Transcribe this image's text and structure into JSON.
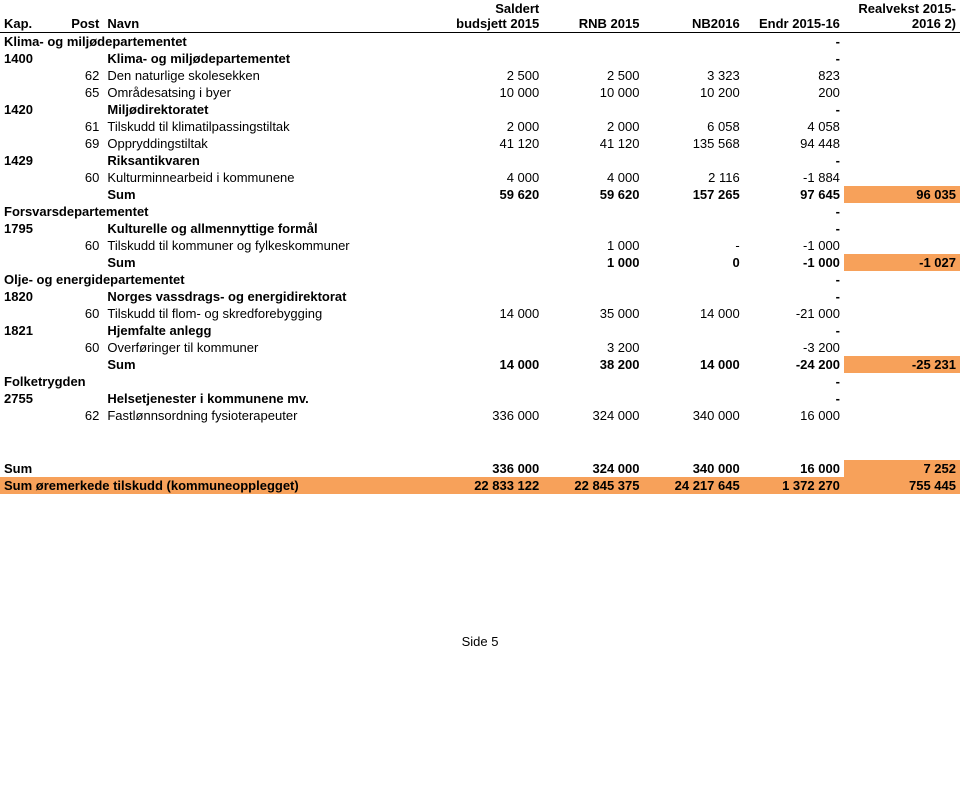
{
  "header": {
    "kap": "Kap.",
    "post": "Post",
    "navn": "Navn",
    "col1_a": "Saldert",
    "col1_b": "budsjett 2015",
    "col2": "RNB 2015",
    "col3": "NB2016",
    "col4": "Endr 2015-16",
    "col5_a": "Realvekst 2015-",
    "col5_b": "2016 2)"
  },
  "sections": [
    {
      "group": "Klima- og miljødepartementet",
      "endr": "-",
      "rows": [
        {
          "kap": "1400",
          "navn": "Klima- og miljødepartementet",
          "c4": "-",
          "bold": true
        },
        {
          "post": "62",
          "navn": "Den naturlige skolesekken",
          "c1": "2 500",
          "c2": "2 500",
          "c3": "3 323",
          "c4": "823"
        },
        {
          "post": "65",
          "navn": "Områdesatsing i byer",
          "c1": "10 000",
          "c2": "10 000",
          "c3": "10 200",
          "c4": "200"
        },
        {
          "kap": "1420",
          "navn": "Miljødirektoratet",
          "c4": "-",
          "bold": true
        },
        {
          "post": "61",
          "navn": "Tilskudd til klimatilpassingstiltak",
          "c1": "2 000",
          "c2": "2 000",
          "c3": "6 058",
          "c4": "4 058"
        },
        {
          "post": "69",
          "navn": "Oppryddingstiltak",
          "c1": "41 120",
          "c2": "41 120",
          "c3": "135 568",
          "c4": "94 448"
        },
        {
          "kap": "1429",
          "navn": "Riksantikvaren",
          "c4": "-",
          "bold": true
        },
        {
          "post": "60",
          "navn": "Kulturminnearbeid i kommunene",
          "c1": "4 000",
          "c2": "4 000",
          "c3": "2 116",
          "c4": "-1 884"
        }
      ],
      "sum": {
        "label": "Sum",
        "c1": "59 620",
        "c2": "59 620",
        "c3": "157 265",
        "c4": "97 645",
        "c5": "96 035"
      }
    },
    {
      "group": "Forsvarsdepartementet",
      "endr": "-",
      "rows": [
        {
          "kap": "1795",
          "navn": "Kulturelle og allmennyttige formål",
          "c4": "-",
          "bold": true
        },
        {
          "post": "60",
          "navn": "Tilskudd til kommuner og fylkeskommuner",
          "c2": "1 000",
          "c3": "-",
          "c4": "-1 000"
        }
      ],
      "sum": {
        "label": "Sum",
        "c2": "1 000",
        "c3": "0",
        "c4": "-1 000",
        "c5": "-1 027"
      }
    },
    {
      "group": "Olje- og energidepartementet",
      "endr": "-",
      "rows": [
        {
          "kap": "1820",
          "navn": "Norges vassdrags- og energidirektorat",
          "c4": "-",
          "bold": true
        },
        {
          "post": "60",
          "navn": "Tilskudd til flom- og skredforebygging",
          "c1": "14 000",
          "c2": "35 000",
          "c3": "14 000",
          "c4": "-21 000"
        },
        {
          "kap": "1821",
          "navn": "Hjemfalte anlegg",
          "c4": "-",
          "bold": true
        },
        {
          "post": "60",
          "navn": "Overføringer til kommuner",
          "c2": "3 200",
          "c4": "-3 200"
        }
      ],
      "sum": {
        "label": "Sum",
        "c1": "14 000",
        "c2": "38 200",
        "c3": "14 000",
        "c4": "-24 200",
        "c5": "-25 231"
      }
    },
    {
      "group": "Folketrygden",
      "endr": "-",
      "rows": [
        {
          "kap": "2755",
          "navn": "Helsetjenester i kommunene mv.",
          "c4": "-",
          "bold": true
        },
        {
          "post": "62",
          "navn": "Fastlønnsordning fysioterapeuter",
          "c1": "336 000",
          "c2": "324 000",
          "c3": "340 000",
          "c4": "16 000"
        }
      ]
    }
  ],
  "bottom": {
    "sum": {
      "label": "Sum",
      "c1": "336 000",
      "c2": "324 000",
      "c3": "340 000",
      "c4": "16 000",
      "c5": "7 252"
    },
    "orem": {
      "label": "Sum øremerkede tilskudd (kommuneopplegget)",
      "c1": "22 833 122",
      "c2": "22 845 375",
      "c3": "24 217 645",
      "c4": "1 372 270",
      "c5": "755 445"
    }
  },
  "footer": "Side 5"
}
